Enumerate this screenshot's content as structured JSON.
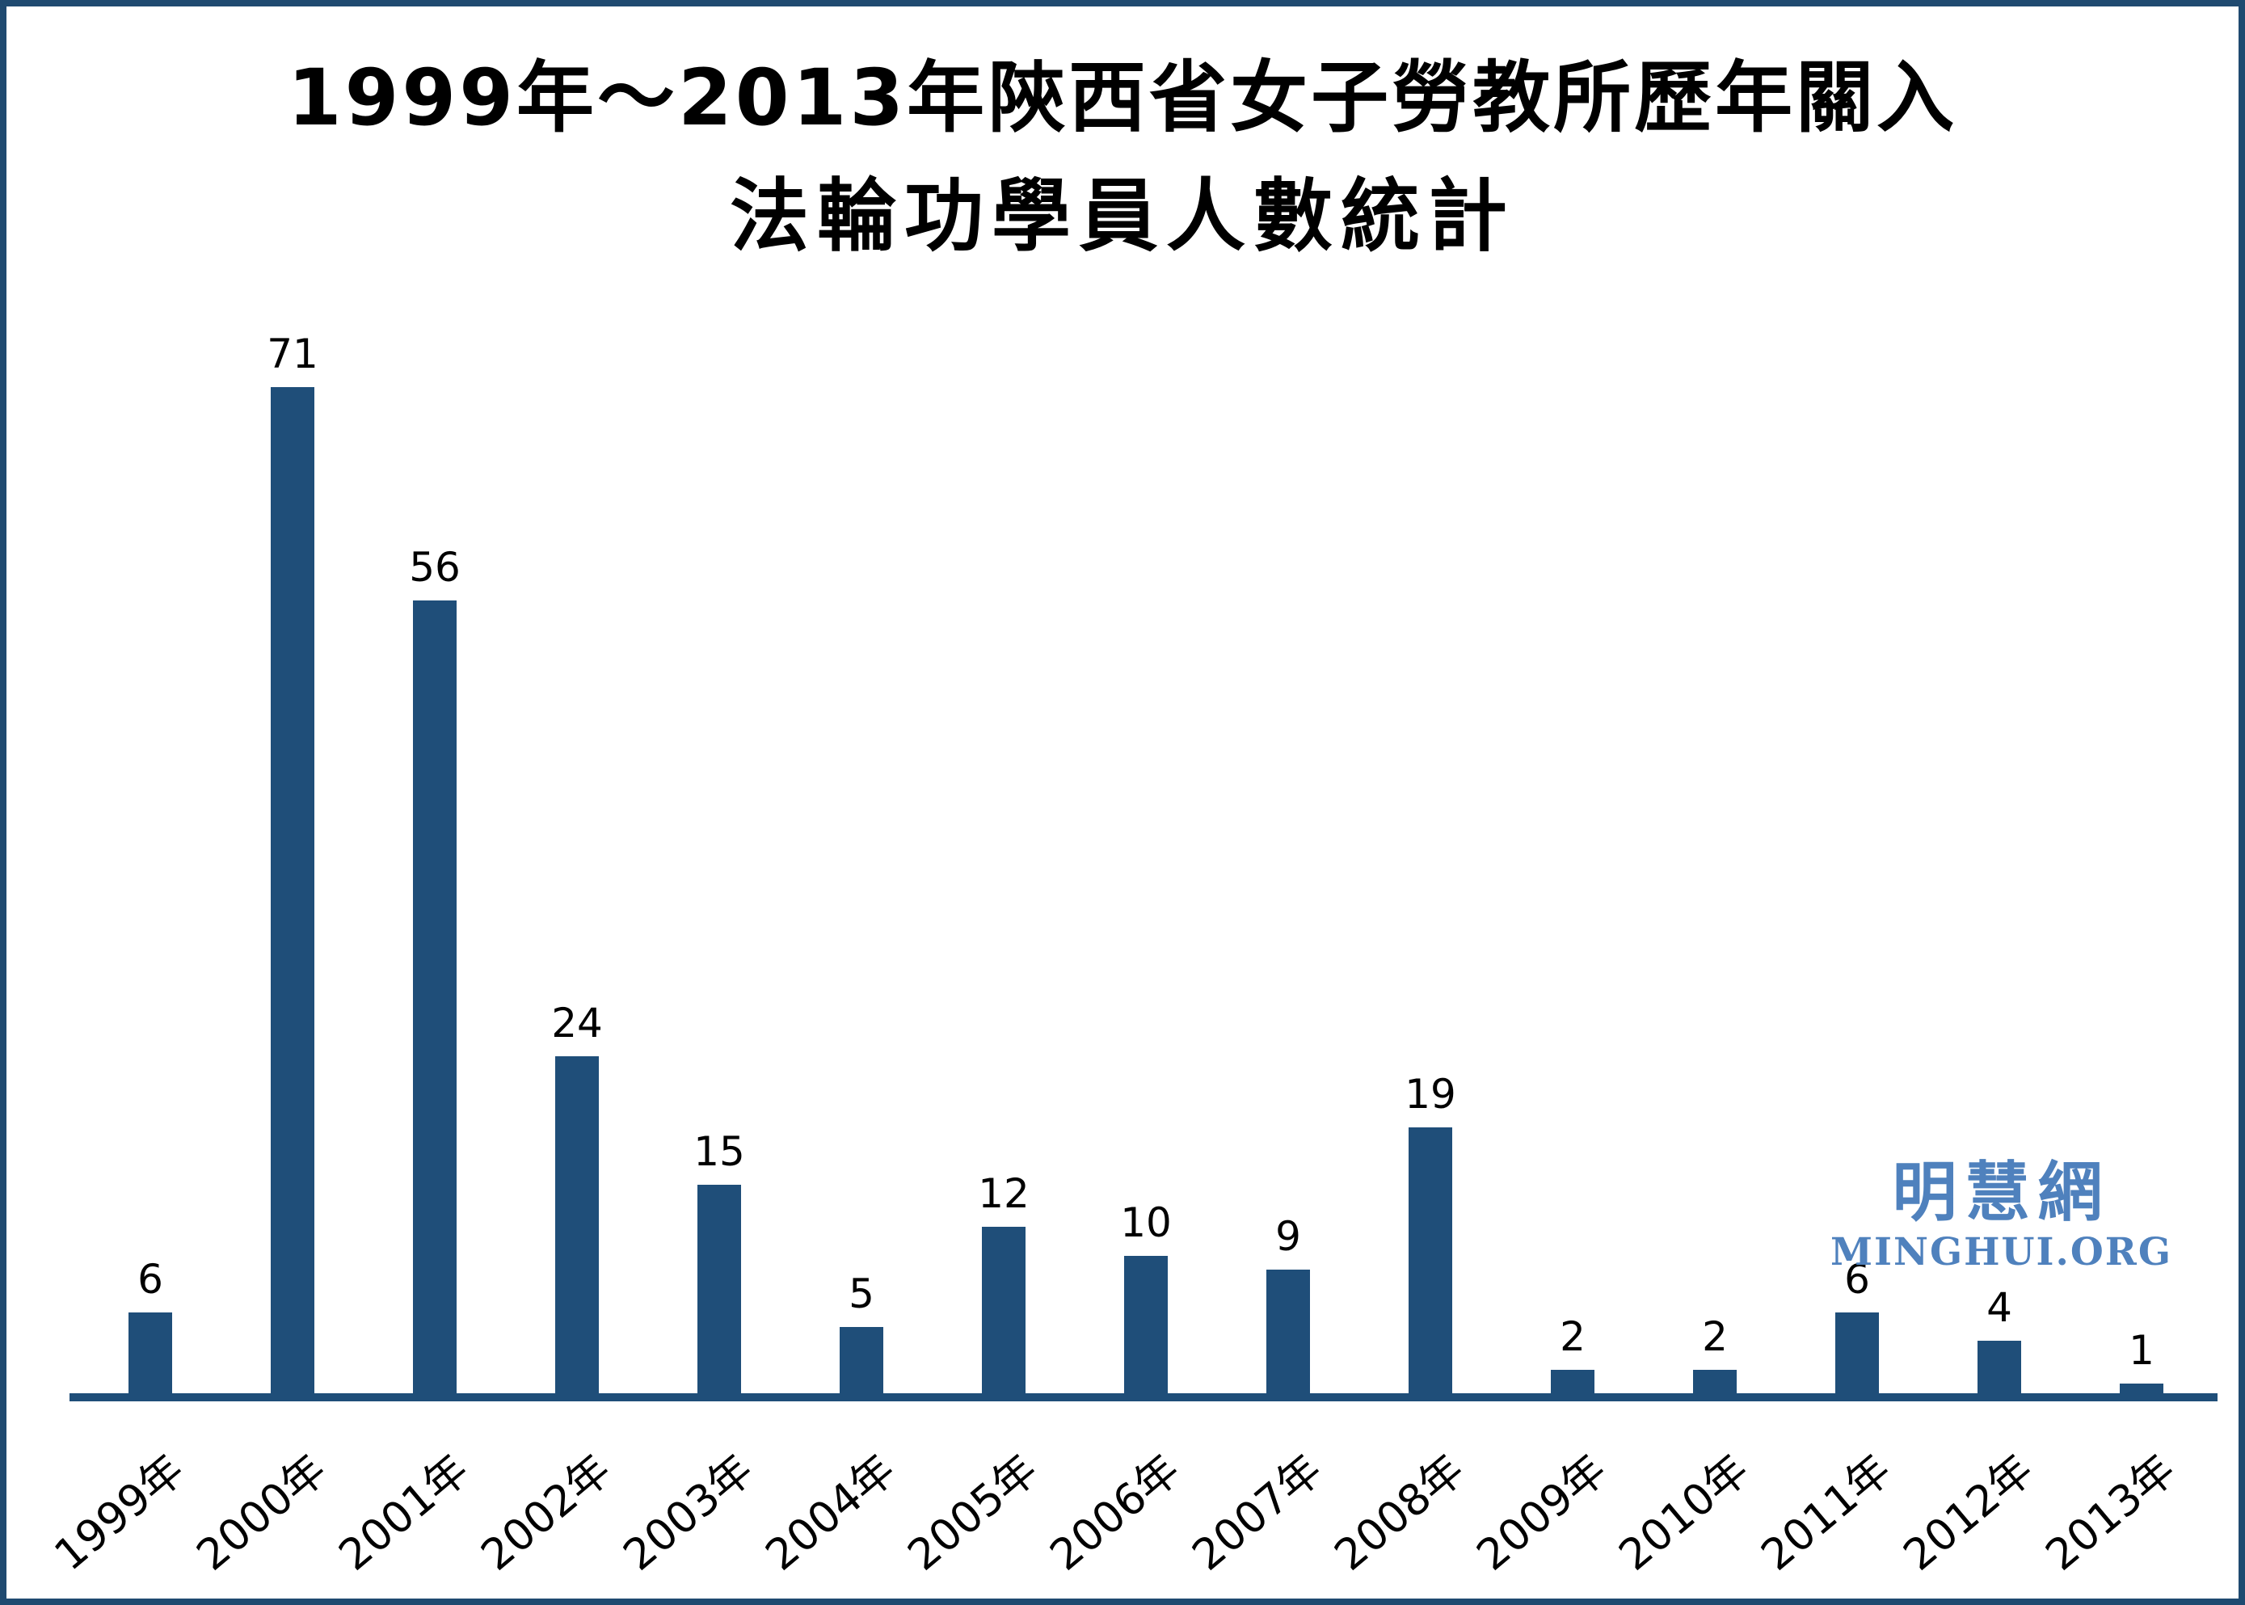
{
  "title": {
    "line1": "1999年～2013年陝西省女子勞教所歷年關入",
    "line2": "法輪功學員人數統計"
  },
  "watermark": {
    "chinese": "明慧網",
    "latin": "MINGHUI.ORG",
    "color": "#4F81BD"
  },
  "colors": {
    "bar": "#1F4E79",
    "axis": "#1F4E79",
    "frame": "#1F4A70"
  },
  "chart_data": {
    "type": "bar",
    "title": "1999年～2013年陝西省女子勞教所歷年關入法輪功學員人數統計",
    "categories": [
      "1999年",
      "2000年",
      "2001年",
      "2002年",
      "2003年",
      "2004年",
      "2005年",
      "2006年",
      "2007年",
      "2008年",
      "2009年",
      "2010年",
      "2011年",
      "2012年",
      "2013年"
    ],
    "values": [
      6,
      71,
      56,
      24,
      15,
      5,
      12,
      10,
      9,
      19,
      2,
      2,
      6,
      4,
      1
    ],
    "xlabel": "",
    "ylabel": "",
    "ylim": [
      0,
      75
    ],
    "grid": false,
    "legend": false,
    "value_labels_shown": true,
    "x_label_rotation_deg": -40
  }
}
